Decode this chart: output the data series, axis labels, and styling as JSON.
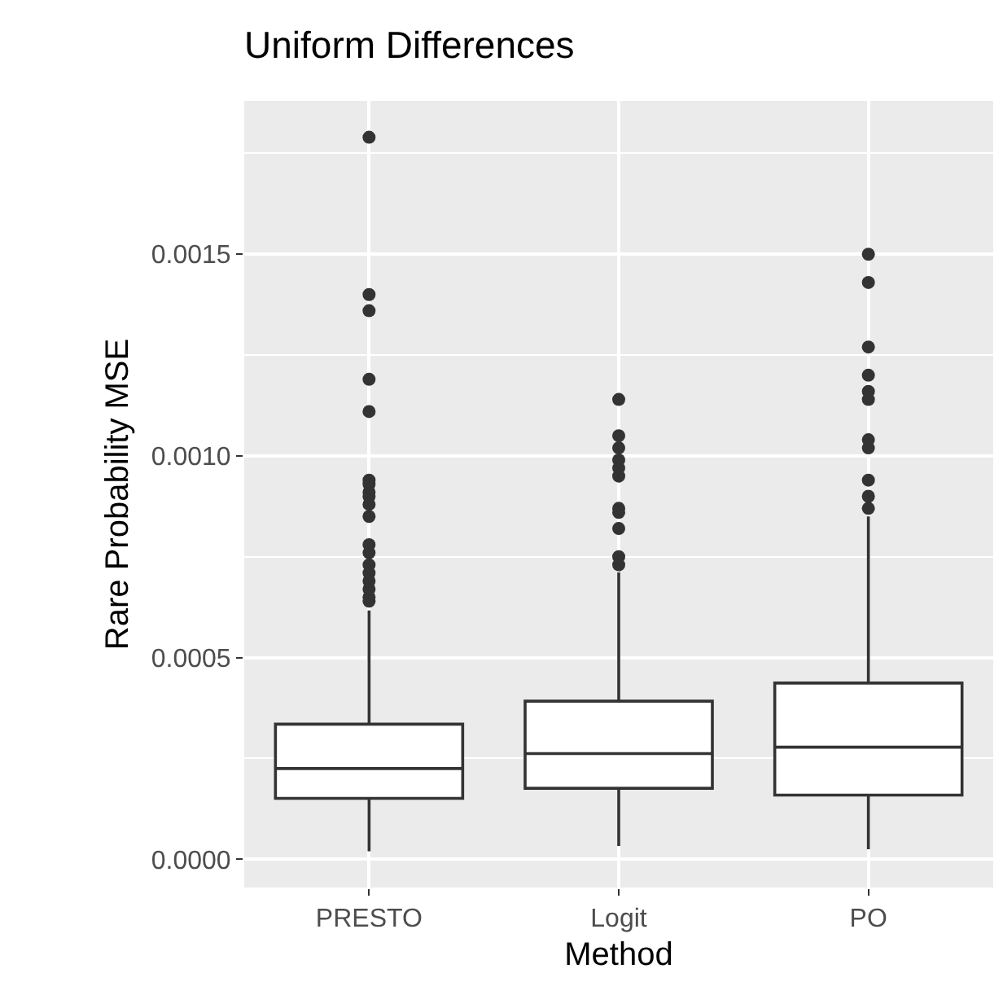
{
  "chart_data": {
    "type": "box",
    "title": "Uniform Differences",
    "xlabel": "Method",
    "ylabel": "Rare Probability MSE",
    "categories": [
      "PRESTO",
      "Logit",
      "PO"
    ],
    "boxes": [
      {
        "low": 2e-05,
        "q1": 0.000151,
        "median": 0.000225,
        "q3": 0.000335,
        "high": 0.000617,
        "outliers": [
          0.00179,
          0.0014,
          0.00136,
          0.00119,
          0.00111,
          0.00094,
          0.0009,
          0.00093,
          0.00091,
          0.00088,
          0.00085,
          0.00078,
          0.00076,
          0.00073,
          0.00071,
          0.00069,
          0.00067,
          0.00065,
          0.00064
        ]
      },
      {
        "low": 3.3e-05,
        "q1": 0.000176,
        "median": 0.000262,
        "q3": 0.000392,
        "high": 0.000711,
        "outliers": [
          0.00114,
          0.00105,
          0.00102,
          0.00099,
          0.00097,
          0.00095,
          0.00087,
          0.00086,
          0.00082,
          0.00075,
          0.00073
        ]
      },
      {
        "low": 2.5e-05,
        "q1": 0.000159,
        "median": 0.000278,
        "q3": 0.000437,
        "high": 0.00085,
        "outliers": [
          0.0015,
          0.00143,
          0.00127,
          0.0012,
          0.00116,
          0.00114,
          0.00104,
          0.00102,
          0.00094,
          0.0009,
          0.00087
        ]
      }
    ],
    "color": "#333333",
    "ylim": [
      -7e-05,
      0.00188
    ],
    "yticks": [
      {
        "value": 0,
        "label": "0.0000"
      },
      {
        "value": 0.0005,
        "label": "0.0005"
      },
      {
        "value": 0.001,
        "label": "0.0010"
      },
      {
        "value": 0.0015,
        "label": "0.0015"
      }
    ],
    "grid": true,
    "marker": "circle"
  }
}
